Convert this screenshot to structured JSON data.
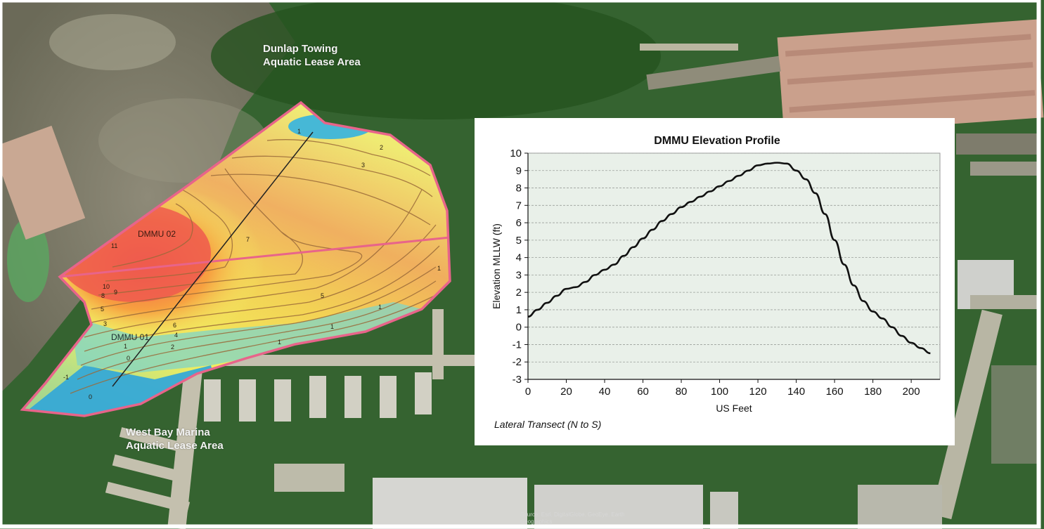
{
  "map": {
    "labels": {
      "dunlap": [
        "Dunlap Towing",
        "Aquatic Lease Area"
      ],
      "westbay": [
        "West Bay Marina",
        "Aquatic Lease Area"
      ],
      "dmmu02": "DMMU 02",
      "dmmu01": "DMMU 01"
    },
    "imagery_credit": [
      "Source: Esri, DigitalGlobe, GeoEye, Earth",
      "Geographics"
    ],
    "contour_labels": [
      "1",
      "2",
      "3",
      "7",
      "11",
      "10",
      "9",
      "8",
      "5",
      "3",
      "1",
      "0",
      "-1",
      "2",
      "4",
      "6",
      "1",
      "1",
      "1",
      "5",
      "1",
      "0"
    ],
    "colors": {
      "boundary": "#e8648a",
      "deep": "#2aa8d8",
      "shallow": "#f2f05a",
      "high": "#f06050",
      "contour": "#9a6a3a"
    }
  },
  "chart_data": {
    "type": "line",
    "title": "DMMU Elevation Profile",
    "xlabel": "US Feet",
    "ylabel": "Elevation MLLW (ft)",
    "footnote": "Lateral Transect (N to S)",
    "xlim": [
      0,
      215
    ],
    "ylim": [
      -3,
      10
    ],
    "xticks": [
      0,
      20,
      40,
      60,
      80,
      100,
      120,
      140,
      160,
      180,
      200
    ],
    "yticks": [
      -3,
      -2,
      -1,
      0,
      1,
      2,
      3,
      4,
      5,
      6,
      7,
      8,
      9,
      10
    ],
    "grid": true,
    "series": [
      {
        "x": [
          0,
          5,
          10,
          15,
          20,
          25,
          30,
          35,
          40,
          45,
          50,
          55,
          60,
          65,
          70,
          75,
          80,
          85,
          90,
          95,
          100,
          105,
          110,
          115,
          120,
          125,
          130,
          135,
          140,
          145,
          150,
          155,
          160,
          165,
          170,
          175,
          180,
          185,
          190,
          195,
          200,
          205,
          210
        ],
        "y": [
          0.6,
          1.0,
          1.4,
          1.8,
          2.2,
          2.3,
          2.6,
          3.0,
          3.3,
          3.6,
          4.1,
          4.6,
          5.1,
          5.6,
          6.1,
          6.5,
          6.9,
          7.2,
          7.5,
          7.8,
          8.1,
          8.4,
          8.7,
          9.0,
          9.3,
          9.4,
          9.45,
          9.4,
          9.0,
          8.5,
          7.7,
          6.5,
          5.0,
          3.6,
          2.4,
          1.5,
          0.9,
          0.5,
          0.0,
          -0.5,
          -0.9,
          -1.2,
          -1.5
        ]
      }
    ]
  }
}
